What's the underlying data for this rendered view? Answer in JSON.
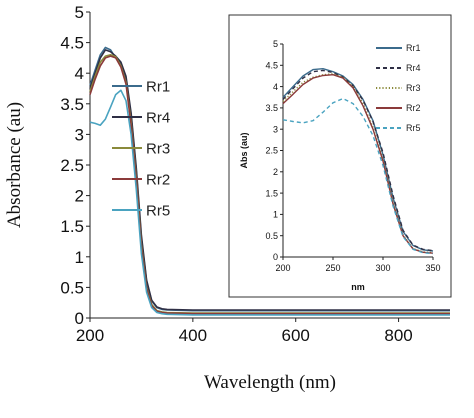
{
  "chart_data": [
    {
      "type": "line",
      "title": "",
      "xlabel": "Wavelength (nm)",
      "ylabel": "Absorbance (au)",
      "xlim": [
        200,
        900
      ],
      "ylim": [
        0,
        5
      ],
      "xticks": [
        "200",
        "400",
        "600",
        "800"
      ],
      "yticks": [
        "0",
        "0.5",
        "1",
        "1.5",
        "2",
        "2.5",
        "3",
        "3.5",
        "4",
        "4.5",
        "5"
      ],
      "legend_position": "middle-left",
      "series": [
        {
          "name": "Rr1",
          "color": "#3b6b8c",
          "dash": "solid",
          "points": [
            [
              200,
              3.8
            ],
            [
              210,
              4.05
            ],
            [
              220,
              4.3
            ],
            [
              230,
              4.42
            ],
            [
              240,
              4.38
            ],
            [
              250,
              4.25
            ],
            [
              260,
              4.15
            ],
            [
              270,
              3.9
            ],
            [
              280,
              3.3
            ],
            [
              290,
              2.4
            ],
            [
              300,
              1.3
            ],
            [
              310,
              0.6
            ],
            [
              320,
              0.28
            ],
            [
              330,
              0.17
            ],
            [
              340,
              0.14
            ],
            [
              350,
              0.13
            ],
            [
              400,
              0.12
            ],
            [
              500,
              0.12
            ],
            [
              600,
              0.12
            ],
            [
              700,
              0.12
            ],
            [
              800,
              0.12
            ],
            [
              900,
              0.12
            ]
          ]
        },
        {
          "name": "Rr4",
          "color": "#2f2f45",
          "dash": "solid",
          "points": [
            [
              200,
              3.75
            ],
            [
              210,
              4.0
            ],
            [
              220,
              4.25
            ],
            [
              230,
              4.38
            ],
            [
              240,
              4.35
            ],
            [
              250,
              4.28
            ],
            [
              260,
              4.18
            ],
            [
              270,
              3.95
            ],
            [
              280,
              3.35
            ],
            [
              290,
              2.45
            ],
            [
              300,
              1.35
            ],
            [
              310,
              0.62
            ],
            [
              320,
              0.29
            ],
            [
              330,
              0.18
            ],
            [
              340,
              0.15
            ],
            [
              350,
              0.14
            ],
            [
              400,
              0.13
            ],
            [
              500,
              0.13
            ],
            [
              600,
              0.13
            ],
            [
              700,
              0.13
            ],
            [
              800,
              0.13
            ],
            [
              900,
              0.13
            ]
          ]
        },
        {
          "name": "Rr3",
          "color": "#8a8a3a",
          "dash": "solid",
          "points": [
            [
              200,
              3.7
            ],
            [
              210,
              3.95
            ],
            [
              220,
              4.18
            ],
            [
              230,
              4.28
            ],
            [
              240,
              4.3
            ],
            [
              250,
              4.27
            ],
            [
              260,
              4.12
            ],
            [
              270,
              3.85
            ],
            [
              280,
              3.2
            ],
            [
              290,
              2.3
            ],
            [
              300,
              1.2
            ],
            [
              310,
              0.5
            ],
            [
              320,
              0.22
            ],
            [
              330,
              0.12
            ],
            [
              340,
              0.1
            ],
            [
              350,
              0.09
            ],
            [
              400,
              0.08
            ],
            [
              500,
              0.08
            ],
            [
              600,
              0.08
            ],
            [
              700,
              0.08
            ],
            [
              800,
              0.08
            ],
            [
              900,
              0.08
            ]
          ]
        },
        {
          "name": "Rr2",
          "color": "#8b3a3a",
          "dash": "solid",
          "points": [
            [
              200,
              3.65
            ],
            [
              210,
              3.9
            ],
            [
              220,
              4.12
            ],
            [
              230,
              4.25
            ],
            [
              240,
              4.28
            ],
            [
              250,
              4.25
            ],
            [
              260,
              4.1
            ],
            [
              270,
              3.82
            ],
            [
              280,
              3.15
            ],
            [
              290,
              2.25
            ],
            [
              300,
              1.15
            ],
            [
              310,
              0.48
            ],
            [
              320,
              0.2
            ],
            [
              330,
              0.11
            ],
            [
              340,
              0.09
            ],
            [
              350,
              0.08
            ],
            [
              400,
              0.07
            ],
            [
              500,
              0.07
            ],
            [
              600,
              0.07
            ],
            [
              700,
              0.07
            ],
            [
              800,
              0.07
            ],
            [
              900,
              0.07
            ]
          ]
        },
        {
          "name": "Rr5",
          "color": "#4aa3c0",
          "dash": "solid",
          "points": [
            [
              200,
              3.2
            ],
            [
              210,
              3.18
            ],
            [
              220,
              3.15
            ],
            [
              230,
              3.25
            ],
            [
              240,
              3.45
            ],
            [
              250,
              3.65
            ],
            [
              260,
              3.72
            ],
            [
              270,
              3.55
            ],
            [
              280,
              3.0
            ],
            [
              290,
              2.1
            ],
            [
              300,
              1.05
            ],
            [
              310,
              0.42
            ],
            [
              320,
              0.17
            ],
            [
              330,
              0.09
            ],
            [
              340,
              0.07
            ],
            [
              350,
              0.06
            ],
            [
              400,
              0.05
            ],
            [
              500,
              0.05
            ],
            [
              600,
              0.05
            ],
            [
              700,
              0.05
            ],
            [
              800,
              0.05
            ],
            [
              900,
              0.05
            ]
          ]
        }
      ]
    },
    {
      "type": "line",
      "title": "",
      "xlabel": "nm",
      "ylabel": "Abs (au)",
      "xlim": [
        200,
        350
      ],
      "ylim": [
        0,
        5
      ],
      "xticks": [
        "200",
        "250",
        "300",
        "350"
      ],
      "yticks": [
        "0",
        "0.5",
        "1",
        "1.5",
        "2",
        "2.5",
        "3",
        "3.5",
        "4",
        "4.5",
        "5"
      ],
      "legend_position": "right",
      "series": [
        {
          "name": "Rr1",
          "color": "#3b6b8c",
          "dash": "solid",
          "points": [
            [
              200,
              3.75
            ],
            [
              210,
              4.0
            ],
            [
              220,
              4.25
            ],
            [
              230,
              4.4
            ],
            [
              240,
              4.42
            ],
            [
              250,
              4.35
            ],
            [
              260,
              4.25
            ],
            [
              270,
              4.05
            ],
            [
              280,
              3.7
            ],
            [
              290,
              3.2
            ],
            [
              300,
              2.4
            ],
            [
              310,
              1.4
            ],
            [
              320,
              0.6
            ],
            [
              330,
              0.27
            ],
            [
              340,
              0.17
            ],
            [
              350,
              0.14
            ]
          ]
        },
        {
          "name": "Rr4",
          "color": "#2f2f45",
          "dash": "dashed",
          "points": [
            [
              200,
              3.7
            ],
            [
              210,
              3.95
            ],
            [
              220,
              4.2
            ],
            [
              230,
              4.35
            ],
            [
              240,
              4.38
            ],
            [
              250,
              4.33
            ],
            [
              260,
              4.22
            ],
            [
              270,
              4.02
            ],
            [
              280,
              3.68
            ],
            [
              290,
              3.18
            ],
            [
              300,
              2.45
            ],
            [
              310,
              1.45
            ],
            [
              320,
              0.63
            ],
            [
              330,
              0.28
            ],
            [
              340,
              0.18
            ],
            [
              350,
              0.15
            ]
          ]
        },
        {
          "name": "Rr3",
          "color": "#8a8a3a",
          "dash": "dotted",
          "points": [
            [
              200,
              3.65
            ],
            [
              210,
              3.88
            ],
            [
              220,
              4.1
            ],
            [
              230,
              4.22
            ],
            [
              240,
              4.28
            ],
            [
              250,
              4.3
            ],
            [
              260,
              4.22
            ],
            [
              270,
              4.0
            ],
            [
              280,
              3.6
            ],
            [
              290,
              3.05
            ],
            [
              300,
              2.3
            ],
            [
              310,
              1.3
            ],
            [
              320,
              0.52
            ],
            [
              330,
              0.2
            ],
            [
              340,
              0.12
            ],
            [
              350,
              0.1
            ]
          ]
        },
        {
          "name": "Rr2",
          "color": "#8b3a3a",
          "dash": "solid",
          "points": [
            [
              200,
              3.6
            ],
            [
              210,
              3.82
            ],
            [
              220,
              4.05
            ],
            [
              230,
              4.2
            ],
            [
              240,
              4.26
            ],
            [
              250,
              4.28
            ],
            [
              260,
              4.2
            ],
            [
              270,
              3.97
            ],
            [
              280,
              3.55
            ],
            [
              290,
              3.0
            ],
            [
              300,
              2.25
            ],
            [
              310,
              1.25
            ],
            [
              320,
              0.5
            ],
            [
              330,
              0.19
            ],
            [
              340,
              0.11
            ],
            [
              350,
              0.09
            ]
          ]
        },
        {
          "name": "Rr5",
          "color": "#4aa3c0",
          "dash": "dashed",
          "points": [
            [
              200,
              3.22
            ],
            [
              210,
              3.18
            ],
            [
              220,
              3.15
            ],
            [
              230,
              3.2
            ],
            [
              240,
              3.4
            ],
            [
              250,
              3.62
            ],
            [
              260,
              3.72
            ],
            [
              270,
              3.6
            ],
            [
              280,
              3.3
            ],
            [
              290,
              2.85
            ],
            [
              300,
              2.15
            ],
            [
              310,
              1.2
            ],
            [
              320,
              0.48
            ],
            [
              330,
              0.18
            ],
            [
              340,
              0.1
            ],
            [
              350,
              0.08
            ]
          ]
        }
      ]
    }
  ]
}
